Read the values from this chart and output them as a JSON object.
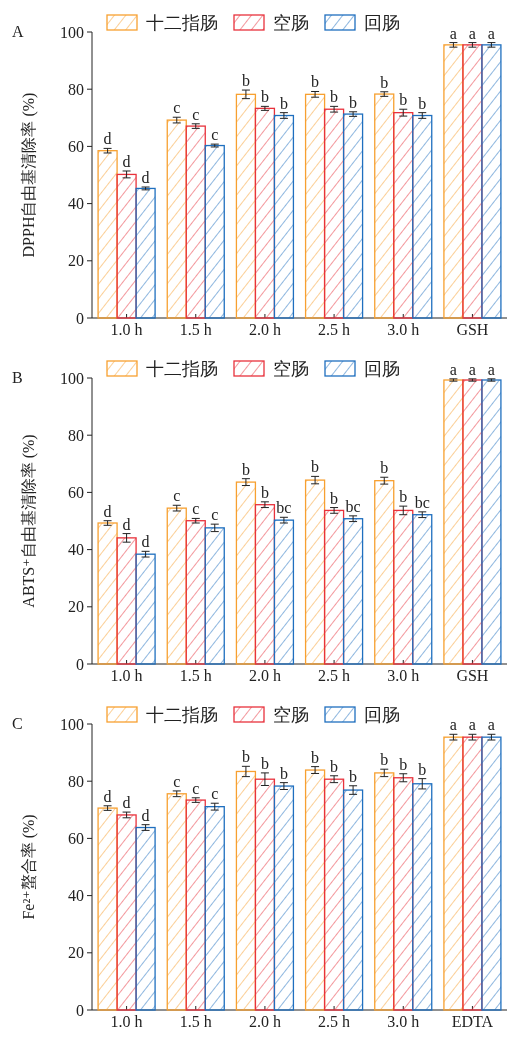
{
  "chart_data": [
    {
      "type": "bar",
      "annotations": [
        "A"
      ],
      "ylabel": "DPPH自由基清除率 (%)",
      "categories": [
        "1.0 h",
        "1.5 h",
        "2.0 h",
        "2.5 h",
        "3.0 h",
        "GSH"
      ],
      "ylim": [
        0,
        100
      ],
      "yticks": [
        0,
        20,
        40,
        60,
        80,
        100
      ],
      "legend": "top",
      "grid": false,
      "series": [
        {
          "name": "十二指肠",
          "color": "#f7a030",
          "values": [
            58.5,
            69.2,
            78.2,
            78.2,
            78.3,
            95.5
          ],
          "errors": [
            0.8,
            1.0,
            1.5,
            1.0,
            0.8,
            0.8
          ],
          "value_labels": [
            "d",
            "c",
            "b",
            "b",
            "b",
            "a"
          ]
        },
        {
          "name": "空肠",
          "color": "#e8323c",
          "values": [
            50.2,
            67.1,
            73.3,
            73.0,
            71.8,
            95.5
          ],
          "errors": [
            1.2,
            0.8,
            0.7,
            1.0,
            1.2,
            0.8
          ],
          "value_labels": [
            "d",
            "c",
            "b",
            "b",
            "b",
            "a"
          ]
        },
        {
          "name": "回肠",
          "color": "#1f6fbf",
          "values": [
            45.3,
            60.3,
            70.8,
            71.3,
            70.8,
            95.5
          ],
          "errors": [
            0.5,
            0.5,
            1.0,
            0.8,
            1.0,
            0.8
          ],
          "value_labels": [
            "d",
            "c",
            "b",
            "b",
            "b",
            "a"
          ]
        }
      ]
    },
    {
      "type": "bar",
      "annotations": [
        "B"
      ],
      "ylabel": "ABTS⁺自由基清除率 (%)",
      "categories": [
        "1.0 h",
        "1.5 h",
        "2.0 h",
        "2.5 h",
        "3.0 h",
        "GSH"
      ],
      "ylim": [
        0,
        100
      ],
      "yticks": [
        0,
        20,
        40,
        60,
        80,
        100
      ],
      "legend": "top",
      "grid": false,
      "series": [
        {
          "name": "十二指肠",
          "color": "#f7a030",
          "values": [
            49.3,
            54.5,
            63.6,
            64.3,
            64.1,
            99.3
          ],
          "errors": [
            0.8,
            1.0,
            1.2,
            1.3,
            1.2,
            0.4
          ],
          "value_labels": [
            "d",
            "c",
            "b",
            "b",
            "b",
            "a"
          ]
        },
        {
          "name": "空肠",
          "color": "#e8323c",
          "values": [
            44.1,
            50.1,
            55.7,
            53.7,
            53.7,
            99.3
          ],
          "errors": [
            1.5,
            0.8,
            1.0,
            1.0,
            1.5,
            0.4
          ],
          "value_labels": [
            "d",
            "c",
            "b",
            "b",
            "b",
            "a"
          ]
        },
        {
          "name": "回肠",
          "color": "#1f6fbf",
          "values": [
            38.4,
            47.6,
            50.3,
            50.8,
            52.2,
            99.3
          ],
          "errors": [
            1.0,
            1.3,
            1.0,
            1.0,
            1.0,
            0.4
          ],
          "value_labels": [
            "d",
            "c",
            "bc",
            "bc",
            "bc",
            "a"
          ]
        }
      ]
    },
    {
      "type": "bar",
      "annotations": [
        "C"
      ],
      "ylabel": "Fe²⁺螯合率 (%)",
      "categories": [
        "1.0 h",
        "1.5 h",
        "2.0 h",
        "2.5 h",
        "3.0 h",
        "EDTA"
      ],
      "ylim": [
        0,
        100
      ],
      "yticks": [
        0,
        20,
        40,
        60,
        80,
        100
      ],
      "legend": "top",
      "grid": false,
      "series": [
        {
          "name": "十二指肠",
          "color": "#f7a030",
          "values": [
            70.6,
            75.6,
            83.4,
            83.9,
            82.9,
            95.4
          ],
          "errors": [
            0.8,
            1.0,
            1.8,
            1.2,
            1.3,
            1.0
          ],
          "value_labels": [
            "d",
            "c",
            "b",
            "b",
            "b",
            "a"
          ]
        },
        {
          "name": "空肠",
          "color": "#e8323c",
          "values": [
            68.2,
            73.4,
            80.7,
            80.7,
            81.2,
            95.4
          ],
          "errors": [
            1.0,
            0.8,
            2.2,
            1.2,
            1.4,
            1.0
          ],
          "value_labels": [
            "d",
            "c",
            "b",
            "b",
            "b",
            "a"
          ]
        },
        {
          "name": "回肠",
          "color": "#1f6fbf",
          "values": [
            63.8,
            71.1,
            78.3,
            76.9,
            79.1,
            95.4
          ],
          "errors": [
            1.0,
            1.2,
            1.2,
            1.5,
            1.8,
            1.0
          ],
          "value_labels": [
            "d",
            "c",
            "b",
            "b",
            "b",
            "a"
          ]
        }
      ]
    }
  ]
}
